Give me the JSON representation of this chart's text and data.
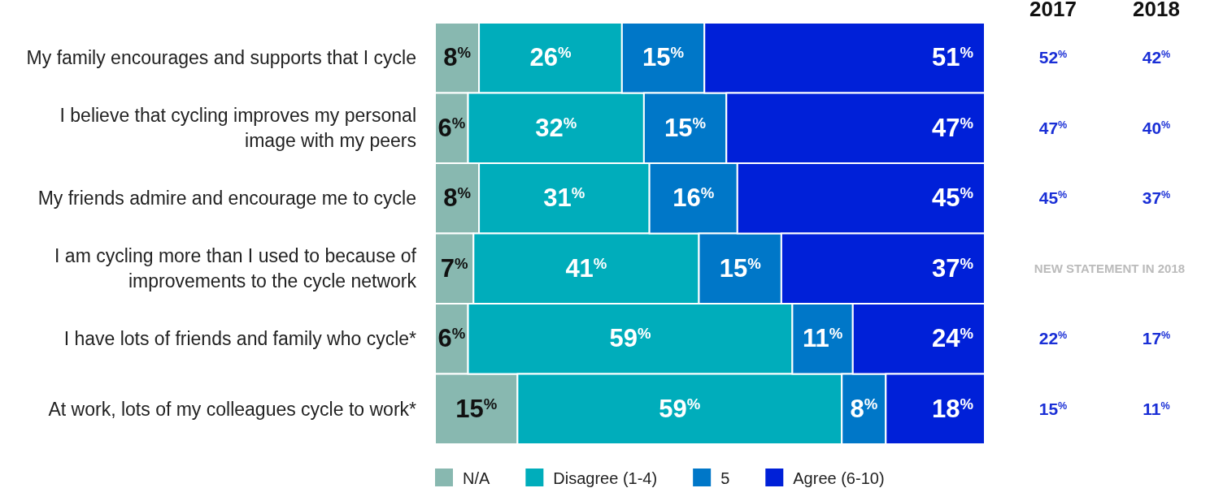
{
  "chart_data": {
    "type": "bar",
    "orientation": "horizontal",
    "stacked": true,
    "tick_labels": "y",
    "legend": "bottom",
    "categories": [
      "My family encourages and supports that I cycle",
      "I believe that cycling improves my personal image with my peers",
      "My friends admire and encourage me to cycle",
      "I am cycling more than I used to because of improvements to the cycle network",
      "I have lots of friends and family who cycle*",
      "At work, lots of my colleagues cycle to work*"
    ],
    "series": [
      {
        "name": "N/A",
        "color": "#88b8b0",
        "values": [
          8,
          6,
          8,
          7,
          6,
          15
        ],
        "value_labels": [
          "8$^{%}$",
          "6$^{%}$",
          "8$^{%}$",
          "7$^{%}$",
          "6$^{%}$",
          "15$^{%}$"
        ]
      },
      {
        "name": "Disagree (1-4)",
        "color": "#00adbb",
        "values": [
          26,
          32,
          31,
          41,
          59,
          59
        ],
        "value_labels": [
          "26$^{%}$",
          "32$^{%}$",
          "31$^{%}$",
          "41$^{%}$",
          "59$^{%}$",
          "59$^{%}$"
        ]
      },
      {
        "name": "5",
        "color": "#0077c8",
        "values": [
          15,
          15,
          16,
          15,
          11,
          8
        ],
        "value_labels": [
          "15$^{%}$",
          "15$^{%}$",
          "16$^{%}$",
          "15$^{%}$",
          "11$^{%}$",
          "8$^{%}$"
        ]
      },
      {
        "name": "Agree (6-10)",
        "color": "#0020d8",
        "values": [
          51,
          47,
          45,
          37,
          24,
          18
        ],
        "value_labels": [
          "51$^{%}$",
          "47$^{%}$",
          "45$^{%}$",
          "37$^{%}$",
          "24$^{%}$",
          "18$^{%}$"
        ]
      }
    ],
    "annotations": [
      "2017",
      "2018",
      "52$^{%}$",
      "42$^{%}$",
      "47$^{%}$",
      "40$^{%}$",
      "45$^{%}$",
      "37$^{%}$",
      "NEW STATEMENT IN 2018",
      "22$^{%}$",
      "17$^{%}$",
      "15$^{%}$",
      "11$^{%}$"
    ]
  }
}
